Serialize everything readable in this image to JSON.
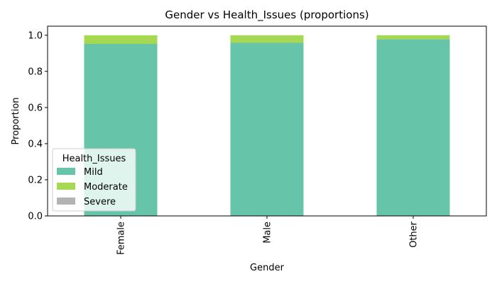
{
  "chart_data": {
    "type": "bar",
    "stacked": true,
    "title": "Gender vs Health_Issues (proportions)",
    "xlabel": "Gender",
    "ylabel": "Proportion",
    "ylim": [
      0,
      1.05
    ],
    "yticks": [
      "0.0",
      "0.2",
      "0.4",
      "0.6",
      "0.8",
      "1.0"
    ],
    "categories": [
      "Female",
      "Male",
      "Other"
    ],
    "series": [
      {
        "name": "Mild",
        "color": "#66c5a8",
        "values": [
          0.952,
          0.958,
          0.978
        ]
      },
      {
        "name": "Moderate",
        "color": "#a6d854",
        "values": [
          0.048,
          0.042,
          0.022
        ]
      },
      {
        "name": "Severe",
        "color": "#b3b3b3",
        "values": [
          0.0,
          0.0,
          0.0
        ]
      }
    ],
    "legend": {
      "title": "Health_Issues",
      "position": "lower-left"
    },
    "grid": false
  }
}
